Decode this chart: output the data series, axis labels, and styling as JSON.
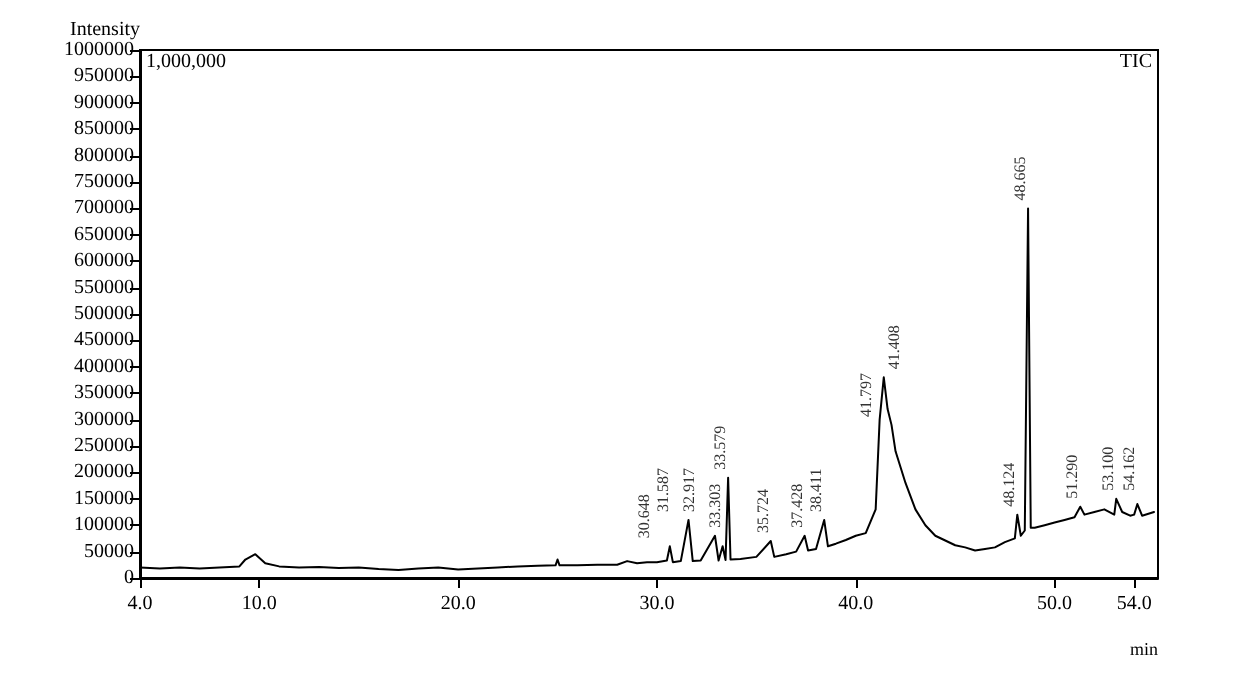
{
  "chart_data": {
    "type": "line",
    "xlabel": "min",
    "ylabel": "Intensity",
    "x": [
      4,
      5,
      6,
      7,
      8,
      9,
      9.3,
      9.8,
      10.3,
      11,
      12,
      13,
      14,
      15,
      16,
      17,
      18,
      19,
      20,
      21,
      22,
      23,
      24,
      24.9,
      25,
      25.1,
      26,
      27,
      28,
      28.5,
      29,
      29.5,
      30,
      30.5,
      30.648,
      30.8,
      31.2,
      31.587,
      31.8,
      32.2,
      32.917,
      33.1,
      33.303,
      33.45,
      33.579,
      33.7,
      34.2,
      35,
      35.724,
      35.9,
      36.5,
      37,
      37.428,
      37.6,
      38,
      38.411,
      38.6,
      39,
      39.5,
      40,
      40.5,
      41,
      41.2,
      41.408,
      41.6,
      41.797,
      42,
      42.5,
      43,
      43.5,
      44,
      45,
      45.5,
      46,
      46.5,
      47,
      47.5,
      48,
      48.124,
      48.3,
      48.5,
      48.665,
      48.8,
      49,
      49.5,
      50,
      50.5,
      51,
      51.29,
      51.5,
      52,
      52.5,
      53,
      53.1,
      53.4,
      53.8,
      54,
      54.162,
      54.4,
      55
    ],
    "values": [
      20000,
      18000,
      20000,
      18000,
      20000,
      22000,
      35000,
      45000,
      28000,
      22000,
      20000,
      21000,
      19000,
      20000,
      17000,
      15000,
      18000,
      20000,
      16000,
      18000,
      20000,
      22000,
      23000,
      24000,
      35000,
      24000,
      24000,
      25000,
      25000,
      32000,
      28000,
      30000,
      30000,
      33000,
      60000,
      30000,
      32000,
      110000,
      32000,
      33000,
      80000,
      33000,
      60000,
      34000,
      190000,
      35000,
      36000,
      40000,
      70000,
      40000,
      45000,
      50000,
      80000,
      52000,
      55000,
      110000,
      60000,
      65000,
      72000,
      80000,
      85000,
      130000,
      300000,
      380000,
      320000,
      290000,
      240000,
      180000,
      130000,
      100000,
      80000,
      62000,
      58000,
      52000,
      55000,
      58000,
      68000,
      75000,
      120000,
      80000,
      90000,
      700000,
      95000,
      95000,
      100000,
      105000,
      110000,
      115000,
      135000,
      120000,
      125000,
      130000,
      120000,
      150000,
      125000,
      118000,
      120000,
      140000,
      118000,
      125000
    ],
    "color": "#000000",
    "xlim": [
      4,
      55.2
    ],
    "ylim": [
      0,
      1000000
    ],
    "xticks": [
      {
        "value": 4,
        "label": "4.0"
      },
      {
        "value": 10,
        "label": "10.0"
      },
      {
        "value": 20,
        "label": "20.0"
      },
      {
        "value": 30,
        "label": "30.0"
      },
      {
        "value": 40,
        "label": "40.0"
      },
      {
        "value": 50,
        "label": "50.0"
      },
      {
        "value": 54,
        "label": "54.0"
      }
    ],
    "yticks": [
      0,
      50000,
      100000,
      150000,
      200000,
      250000,
      300000,
      350000,
      400000,
      450000,
      500000,
      550000,
      600000,
      650000,
      700000,
      750000,
      800000,
      850000,
      900000,
      950000,
      1000000
    ],
    "grid": false,
    "marker": "none",
    "line_style": "solid",
    "annotations": [
      "1,000,000",
      "TIC",
      {
        "text": "30.648",
        "x": 30.648,
        "y": 60000
      },
      {
        "text": "31.587",
        "x": 31.587,
        "y": 110000
      },
      {
        "text": "32.917",
        "x": 32.917,
        "y": 80000
      },
      {
        "text": "33.303",
        "x": 33.303,
        "y": 60000
      },
      {
        "text": "33.579",
        "x": 33.579,
        "y": 190000
      },
      {
        "text": "35.724",
        "x": 35.724,
        "y": 70000
      },
      {
        "text": "37.428",
        "x": 37.428,
        "y": 80000
      },
      {
        "text": "38.411",
        "x": 38.411,
        "y": 110000
      },
      {
        "text": "41.408",
        "x": 41.408,
        "y": 380000
      },
      {
        "text": "41.797",
        "x": 41.797,
        "y": 290000
      },
      {
        "text": "48.124",
        "x": 48.124,
        "y": 120000
      },
      {
        "text": "48.665",
        "x": 48.665,
        "y": 700000
      },
      {
        "text": "51.290",
        "x": 51.29,
        "y": 135000
      },
      {
        "text": "53.100",
        "x": 53.1,
        "y": 150000
      },
      {
        "text": "54.162",
        "x": 54.162,
        "y": 140000
      }
    ]
  }
}
